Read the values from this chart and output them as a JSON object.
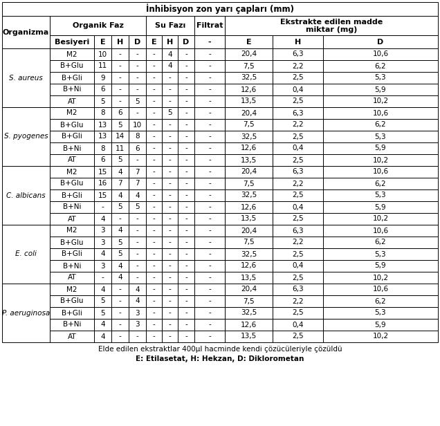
{
  "title": "İnhibisyon zon yarı çapları (mm)",
  "footnote1": "Elde edilen ekstraktlar 400μl hacminde kendi çözücüleriyle çözüldü",
  "footnote2": "E: Etilasetat, H: Hekzan, D: Diklorometan",
  "organisms": [
    "S. aureus",
    "S. pyogenes",
    "C. albicans",
    "E. coli",
    "P. aeruginosa"
  ],
  "besiyeri": [
    "M2",
    "B+Glu",
    "B+Gli",
    "B+Ni",
    "AT"
  ],
  "data": {
    "S. aureus": {
      "M2": [
        "10",
        "-",
        "-",
        "-",
        "4",
        "-",
        "-",
        "20,4",
        "6,3",
        "10,6"
      ],
      "B+Glu": [
        "11",
        "-",
        "-",
        "-",
        "4",
        "-",
        "-",
        "7,5",
        "2,2",
        "6,2"
      ],
      "B+Gli": [
        "9",
        "-",
        "-",
        "-",
        "-",
        "-",
        "-",
        "32,5",
        "2,5",
        "5,3"
      ],
      "B+Ni": [
        "6",
        "-",
        "-",
        "-",
        "-",
        "-",
        "-",
        "12,6",
        "0,4",
        "5,9"
      ],
      "AT": [
        "5",
        "-",
        "5",
        "-",
        "-",
        "-",
        "-",
        "13,5",
        "2,5",
        "10,2"
      ]
    },
    "S. pyogenes": {
      "M2": [
        "8",
        "6",
        "-",
        "-",
        "5",
        "-",
        "-",
        "20,4",
        "6,3",
        "10,6"
      ],
      "B+Glu": [
        "13",
        "5",
        "10",
        "-",
        "-",
        "-",
        "-",
        "7,5",
        "2,2",
        "6,2"
      ],
      "B+Gli": [
        "13",
        "14",
        "8",
        "-",
        "-",
        "-",
        "-",
        "32,5",
        "2,5",
        "5,3"
      ],
      "B+Ni": [
        "8",
        "11",
        "6",
        "-",
        "-",
        "-",
        "-",
        "12,6",
        "0,4",
        "5,9"
      ],
      "AT": [
        "6",
        "5",
        "-",
        "-",
        "-",
        "-",
        "-",
        "13,5",
        "2,5",
        "10,2"
      ]
    },
    "C. albicans": {
      "M2": [
        "15",
        "4",
        "7",
        "-",
        "-",
        "-",
        "-",
        "20,4",
        "6,3",
        "10,6"
      ],
      "B+Glu": [
        "16",
        "7",
        "7",
        "-",
        "-",
        "-",
        "-",
        "7,5",
        "2,2",
        "6,2"
      ],
      "B+Gli": [
        "15",
        "4",
        "4",
        "-",
        "-",
        "-",
        "-",
        "32,5",
        "2,5",
        "5,3"
      ],
      "B+Ni": [
        "-",
        "5",
        "5",
        "-",
        "-",
        "-",
        "-",
        "12,6",
        "0,4",
        "5,9"
      ],
      "AT": [
        "4",
        "-",
        "-",
        "-",
        "-",
        "-",
        "-",
        "13,5",
        "2,5",
        "10,2"
      ]
    },
    "E. coli": {
      "M2": [
        "3",
        "4",
        "-",
        "-",
        "-",
        "-",
        "-",
        "20,4",
        "6,3",
        "10,6"
      ],
      "B+Glu": [
        "3",
        "5",
        "-",
        "-",
        "-",
        "-",
        "-",
        "7,5",
        "2,2",
        "6,2"
      ],
      "B+Gli": [
        "4",
        "5",
        "-",
        "-",
        "-",
        "-",
        "-",
        "32,5",
        "2,5",
        "5,3"
      ],
      "B+Ni": [
        "3",
        "4",
        "-",
        "-",
        "-",
        "-",
        "-",
        "12,6",
        "0,4",
        "5,9"
      ],
      "AT": [
        "-",
        "4",
        "-",
        "-",
        "-",
        "-",
        "-",
        "13,5",
        "2,5",
        "10,2"
      ]
    },
    "P. aeruginosa": {
      "M2": [
        "4",
        "-",
        "4",
        "-",
        "-",
        "-",
        "-",
        "20,4",
        "6,3",
        "10,6"
      ],
      "B+Glu": [
        "5",
        "-",
        "4",
        "-",
        "-",
        "-",
        "-",
        "7,5",
        "2,2",
        "6,2"
      ],
      "B+Gli": [
        "5",
        "-",
        "3",
        "-",
        "-",
        "-",
        "-",
        "32,5",
        "2,5",
        "5,3"
      ],
      "B+Ni": [
        "4",
        "-",
        "3",
        "-",
        "-",
        "-",
        "-",
        "12,6",
        "0,4",
        "5,9"
      ],
      "AT": [
        "4",
        "-",
        "-",
        "-",
        "-",
        "-",
        "-",
        "13,5",
        "2,5",
        "10,2"
      ]
    }
  },
  "bg_color": "#ffffff",
  "text_color": "#000000"
}
